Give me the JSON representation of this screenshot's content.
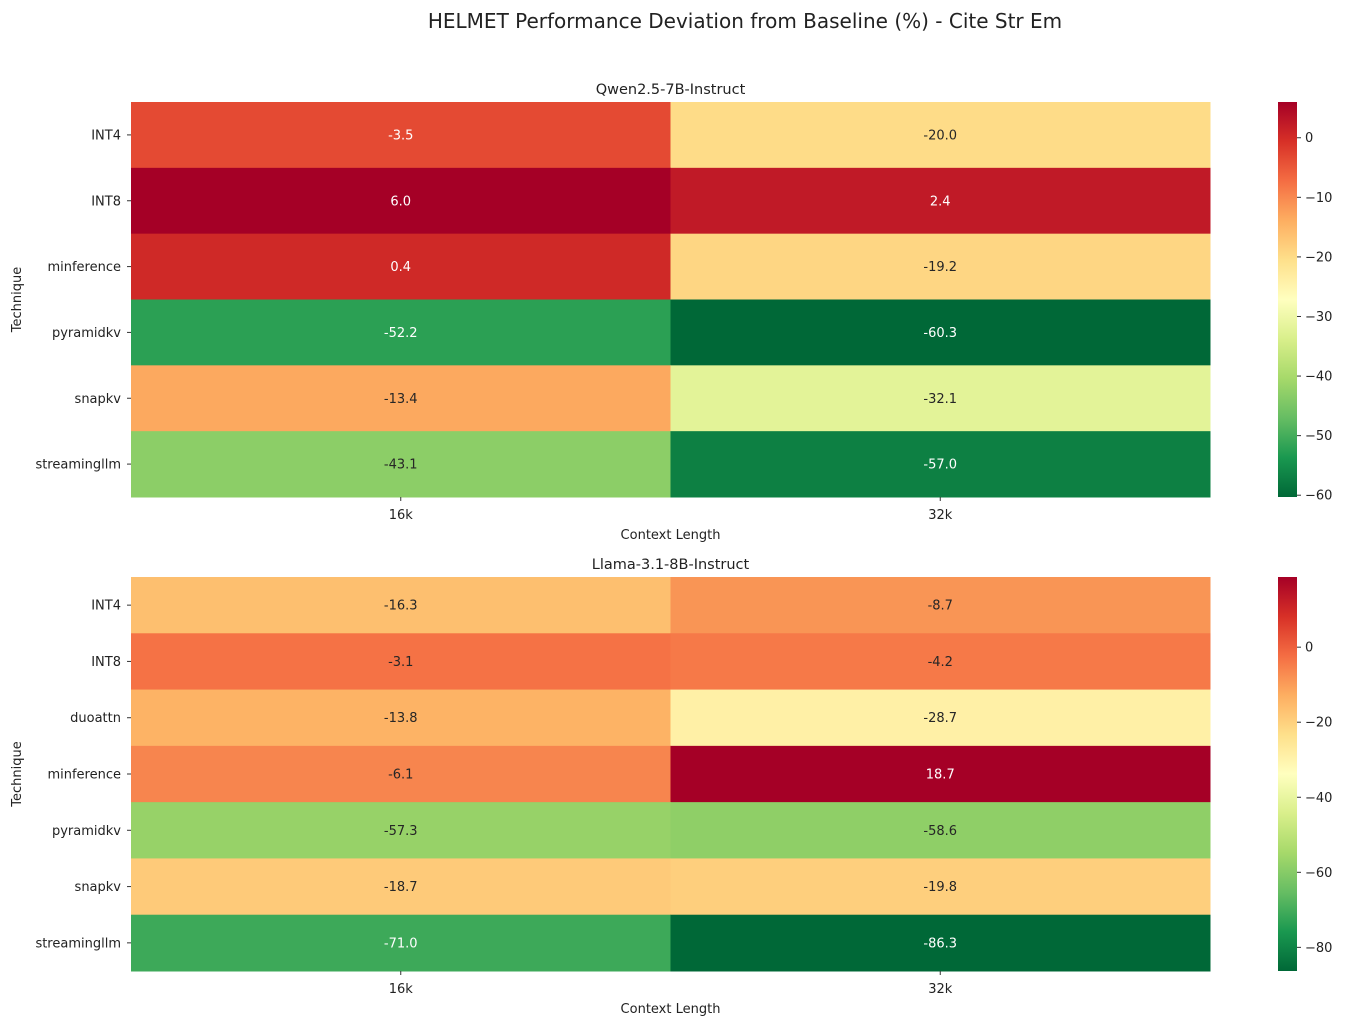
{
  "suptitle": "HELMET Performance Deviation from Baseline (%) - Cite Str Em",
  "chart_data": [
    {
      "type": "heatmap",
      "title": "Qwen2.5-7B-Instruct",
      "xlabel": "Context Length",
      "ylabel": "Technique",
      "x": [
        "16k",
        "32k"
      ],
      "y": [
        "INT4",
        "INT8",
        "minference",
        "pyramidkv",
        "snapkv",
        "streamingllm"
      ],
      "values": [
        [
          -3.5,
          -20.0
        ],
        [
          6.0,
          2.4
        ],
        [
          0.4,
          -19.2
        ],
        [
          -52.2,
          -60.3
        ],
        [
          -13.4,
          -32.1
        ],
        [
          -43.1,
          -57.0
        ]
      ],
      "labels": [
        [
          "-3.5",
          "-20.0"
        ],
        [
          "6.0",
          "2.4"
        ],
        [
          "0.4",
          "-19.2"
        ],
        [
          "-52.2",
          "-60.3"
        ],
        [
          "-13.4",
          "-32.1"
        ],
        [
          "-43.1",
          "-57.0"
        ]
      ],
      "colorscale": "RdYlGn",
      "colorbar_range": [
        -60.3,
        6.0
      ],
      "colorbar_ticks": [
        0,
        -10,
        -20,
        -30,
        -40,
        -50,
        -60
      ],
      "colorbar_tick_labels": [
        "0",
        "−10",
        "−20",
        "−30",
        "−40",
        "−50",
        "−60"
      ]
    },
    {
      "type": "heatmap",
      "title": "Llama-3.1-8B-Instruct",
      "xlabel": "Context Length",
      "ylabel": "Technique",
      "x": [
        "16k",
        "32k"
      ],
      "y": [
        "INT4",
        "INT8",
        "duoattn",
        "minference",
        "pyramidkv",
        "snapkv",
        "streamingllm"
      ],
      "values": [
        [
          -16.3,
          -8.7
        ],
        [
          -3.1,
          -4.2
        ],
        [
          -13.8,
          -28.7
        ],
        [
          -6.1,
          18.7
        ],
        [
          -57.3,
          -58.6
        ],
        [
          -18.7,
          -19.8
        ],
        [
          -71.0,
          -86.3
        ]
      ],
      "labels": [
        [
          "-16.3",
          "-8.7"
        ],
        [
          "-3.1",
          "-4.2"
        ],
        [
          "-13.8",
          "-28.7"
        ],
        [
          "-6.1",
          "18.7"
        ],
        [
          "-57.3",
          "-58.6"
        ],
        [
          "-18.7",
          "-19.8"
        ],
        [
          "-71.0",
          "-86.3"
        ]
      ],
      "colorscale": "RdYlGn",
      "colorbar_range": [
        -86.3,
        18.7
      ],
      "colorbar_ticks": [
        0,
        -20,
        -40,
        -60,
        -80
      ],
      "colorbar_tick_labels": [
        "0",
        "−20",
        "−40",
        "−60",
        "−80"
      ]
    }
  ]
}
